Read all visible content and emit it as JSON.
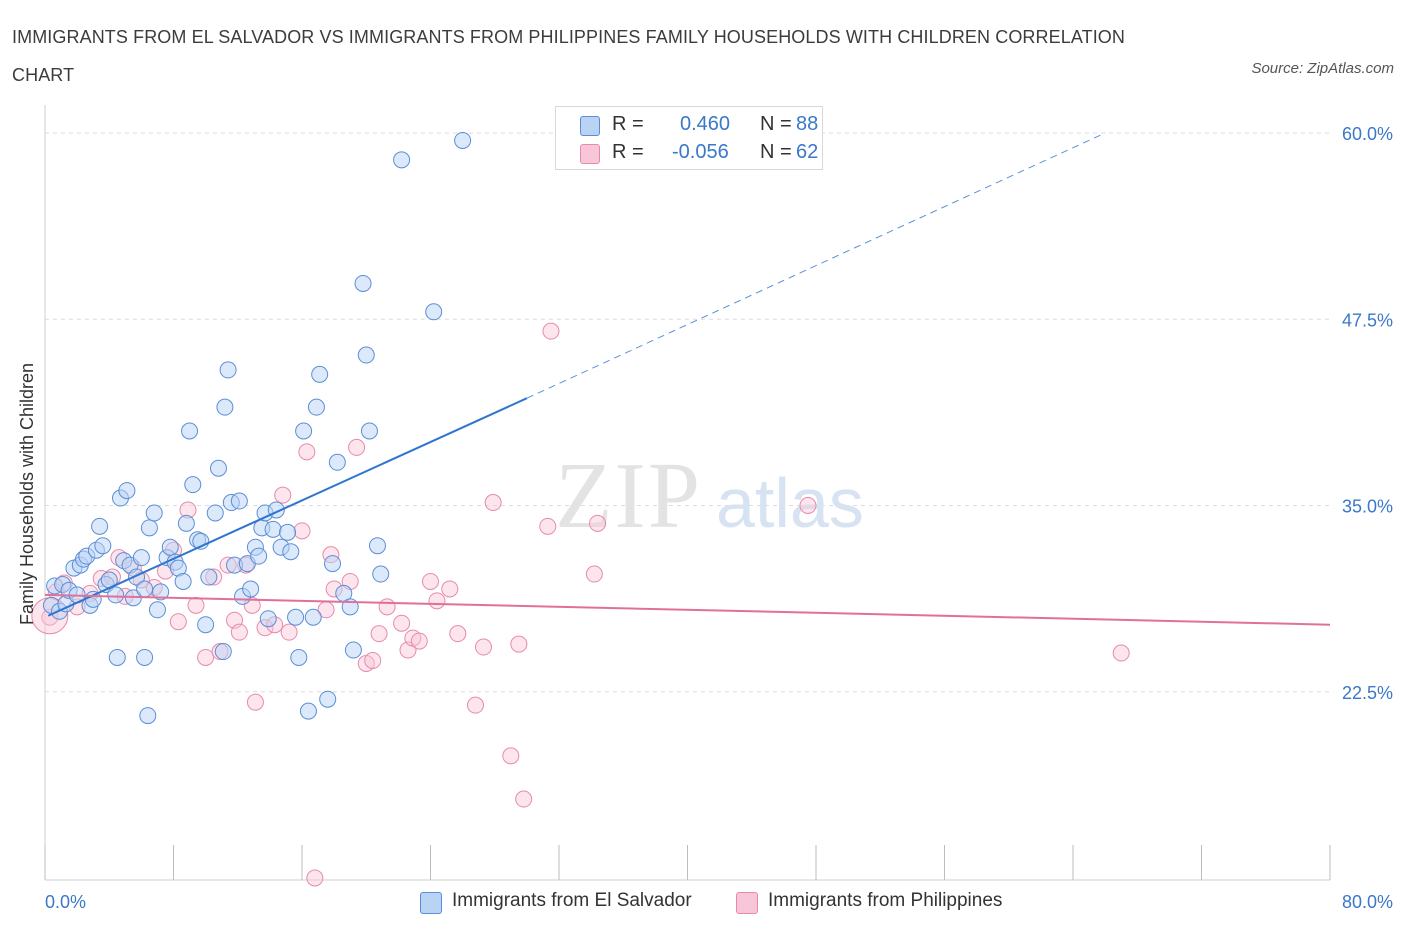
{
  "header": {
    "title": "IMMIGRANTS FROM EL SALVADOR VS IMMIGRANTS FROM PHILIPPINES FAMILY HOUSEHOLDS WITH CHILDREN CORRELATION CHART",
    "source": "Source: ZipAtlas.com"
  },
  "watermark": {
    "zip": "ZIP",
    "atlas": "atlas"
  },
  "legend": {
    "r_label": "R =",
    "n_label": "N =",
    "el_salvador": {
      "r": "0.460",
      "n": "88"
    },
    "philippines": {
      "r": "-0.056",
      "n": "62"
    }
  },
  "colors": {
    "blue_fill": "#b9d3f5",
    "blue_stroke": "#5b8ed6",
    "blue_line": "#2e75d0",
    "pink_fill": "#f8c6d8",
    "pink_stroke": "#e88aab",
    "pink_line": "#e0709a",
    "grid": "#dcdcdc",
    "tick_label": "#3a78c9"
  },
  "chart_data": {
    "type": "scatter",
    "title": "IMMIGRANTS FROM EL SALVADOR VS IMMIGRANTS FROM PHILIPPINES FAMILY HOUSEHOLDS WITH CHILDREN CORRELATION CHART",
    "xlabel": "",
    "ylabel": "Family Households with Children",
    "xlim": [
      0,
      80
    ],
    "ylim": [
      10,
      60
    ],
    "x_tick_labels": [
      {
        "value": 0,
        "label": "0.0%"
      },
      {
        "value": 80,
        "label": "80.0%"
      }
    ],
    "y_ticks": [
      {
        "value": 22.5,
        "label": "22.5%"
      },
      {
        "value": 35.0,
        "label": "35.0%"
      },
      {
        "value": 47.5,
        "label": "47.5%"
      },
      {
        "value": 60.0,
        "label": "60.0%"
      }
    ],
    "grid": true,
    "series": [
      {
        "name": "Immigrants from El Salvador",
        "color": "blue",
        "R": 0.46,
        "N": 88,
        "trend": {
          "x0": 0.2,
          "y0": 27.6,
          "x1": 30.0,
          "y1": 42.2,
          "dash_x1": 66.0,
          "dash_y1": 60.0
        },
        "points": [
          [
            0.4,
            28.3
          ],
          [
            0.6,
            29.6
          ],
          [
            0.9,
            27.9
          ],
          [
            1.1,
            29.7
          ],
          [
            1.3,
            28.4
          ],
          [
            1.5,
            29.3
          ],
          [
            1.8,
            30.8
          ],
          [
            2.0,
            29.0
          ],
          [
            2.2,
            31.0
          ],
          [
            2.4,
            31.4
          ],
          [
            2.6,
            31.6
          ],
          [
            2.8,
            28.3
          ],
          [
            3.0,
            28.7
          ],
          [
            3.2,
            32.0
          ],
          [
            3.4,
            33.6
          ],
          [
            3.6,
            32.3
          ],
          [
            3.8,
            29.7
          ],
          [
            4.0,
            30.0
          ],
          [
            4.4,
            29.0
          ],
          [
            4.7,
            35.5
          ],
          [
            4.9,
            31.3
          ],
          [
            5.1,
            36.0
          ],
          [
            5.3,
            31.0
          ],
          [
            5.5,
            28.8
          ],
          [
            5.7,
            30.2
          ],
          [
            6.0,
            31.5
          ],
          [
            6.2,
            29.4
          ],
          [
            6.5,
            33.5
          ],
          [
            6.8,
            34.5
          ],
          [
            7.0,
            28.0
          ],
          [
            7.2,
            29.2
          ],
          [
            7.6,
            31.5
          ],
          [
            7.8,
            32.2
          ],
          [
            8.1,
            31.2
          ],
          [
            8.3,
            30.8
          ],
          [
            8.6,
            29.9
          ],
          [
            8.8,
            33.8
          ],
          [
            9.0,
            40.0
          ],
          [
            9.2,
            36.4
          ],
          [
            9.5,
            32.7
          ],
          [
            9.7,
            32.6
          ],
          [
            10.0,
            27.0
          ],
          [
            10.2,
            30.2
          ],
          [
            10.6,
            34.5
          ],
          [
            10.8,
            37.5
          ],
          [
            11.2,
            41.6
          ],
          [
            11.4,
            44.1
          ],
          [
            11.6,
            35.2
          ],
          [
            11.8,
            31.0
          ],
          [
            12.1,
            35.3
          ],
          [
            12.3,
            28.9
          ],
          [
            12.6,
            31.1
          ],
          [
            12.8,
            29.4
          ],
          [
            13.1,
            32.2
          ],
          [
            13.3,
            31.6
          ],
          [
            13.5,
            33.5
          ],
          [
            13.7,
            34.5
          ],
          [
            13.9,
            27.4
          ],
          [
            14.2,
            33.4
          ],
          [
            14.4,
            34.7
          ],
          [
            14.7,
            32.2
          ],
          [
            15.1,
            33.2
          ],
          [
            15.3,
            31.9
          ],
          [
            15.6,
            27.5
          ],
          [
            15.8,
            24.8
          ],
          [
            16.1,
            40.0
          ],
          [
            16.4,
            21.2
          ],
          [
            16.7,
            27.5
          ],
          [
            16.9,
            41.6
          ],
          [
            17.1,
            43.8
          ],
          [
            17.6,
            22.0
          ],
          [
            17.9,
            31.1
          ],
          [
            18.2,
            37.9
          ],
          [
            18.6,
            29.1
          ],
          [
            19.0,
            28.2
          ],
          [
            19.2,
            25.3
          ],
          [
            19.8,
            49.9
          ],
          [
            20.0,
            45.1
          ],
          [
            20.2,
            40.0
          ],
          [
            20.7,
            32.3
          ],
          [
            20.9,
            30.4
          ],
          [
            24.2,
            48.0
          ],
          [
            11.1,
            25.2
          ],
          [
            4.5,
            24.8
          ],
          [
            6.2,
            24.8
          ],
          [
            6.4,
            20.9
          ],
          [
            22.2,
            58.2
          ],
          [
            26.0,
            59.5
          ]
        ]
      },
      {
        "name": "Immigrants from Philippines",
        "color": "pink",
        "R": -0.056,
        "N": 62,
        "trend": {
          "x0": 0.0,
          "y0": 29.0,
          "x1": 80.0,
          "y1": 27.0
        },
        "points": [
          [
            0.3,
            27.5
          ],
          [
            0.7,
            29.2
          ],
          [
            1.2,
            29.8
          ],
          [
            2.0,
            28.2
          ],
          [
            2.8,
            29.1
          ],
          [
            3.5,
            30.1
          ],
          [
            4.2,
            30.2
          ],
          [
            4.6,
            31.5
          ],
          [
            5.0,
            28.9
          ],
          [
            5.5,
            30.8
          ],
          [
            6.0,
            30.0
          ],
          [
            6.8,
            29.5
          ],
          [
            7.5,
            30.6
          ],
          [
            8.0,
            32.0
          ],
          [
            8.3,
            27.2
          ],
          [
            8.9,
            34.7
          ],
          [
            9.4,
            28.3
          ],
          [
            10.0,
            24.8
          ],
          [
            10.5,
            30.2
          ],
          [
            10.9,
            25.2
          ],
          [
            11.4,
            31.0
          ],
          [
            11.8,
            27.3
          ],
          [
            12.1,
            26.5
          ],
          [
            12.5,
            31.0
          ],
          [
            12.9,
            28.3
          ],
          [
            13.1,
            21.8
          ],
          [
            13.7,
            26.8
          ],
          [
            14.3,
            27.0
          ],
          [
            14.8,
            35.7
          ],
          [
            15.2,
            26.5
          ],
          [
            16.0,
            33.3
          ],
          [
            16.3,
            38.6
          ],
          [
            16.8,
            10.0
          ],
          [
            17.5,
            28.0
          ],
          [
            17.8,
            31.7
          ],
          [
            18.0,
            29.4
          ],
          [
            19.0,
            29.9
          ],
          [
            19.4,
            38.9
          ],
          [
            20.0,
            24.4
          ],
          [
            20.4,
            24.6
          ],
          [
            20.8,
            26.4
          ],
          [
            21.3,
            28.2
          ],
          [
            22.2,
            27.1
          ],
          [
            22.6,
            25.3
          ],
          [
            22.9,
            26.1
          ],
          [
            23.3,
            25.9
          ],
          [
            24.0,
            29.9
          ],
          [
            24.4,
            28.6
          ],
          [
            25.2,
            29.4
          ],
          [
            25.7,
            26.4
          ],
          [
            26.8,
            21.6
          ],
          [
            27.3,
            25.5
          ],
          [
            27.9,
            35.2
          ],
          [
            29.0,
            18.2
          ],
          [
            29.5,
            25.7
          ],
          [
            29.8,
            15.3
          ],
          [
            31.3,
            33.6
          ],
          [
            31.5,
            46.7
          ],
          [
            34.2,
            30.4
          ],
          [
            34.4,
            33.8
          ],
          [
            47.5,
            35.0
          ],
          [
            67.0,
            25.1
          ]
        ]
      }
    ],
    "legend_labels": {
      "series_a": "Immigrants from El Salvador",
      "series_b": "Immigrants from Philippines"
    }
  }
}
